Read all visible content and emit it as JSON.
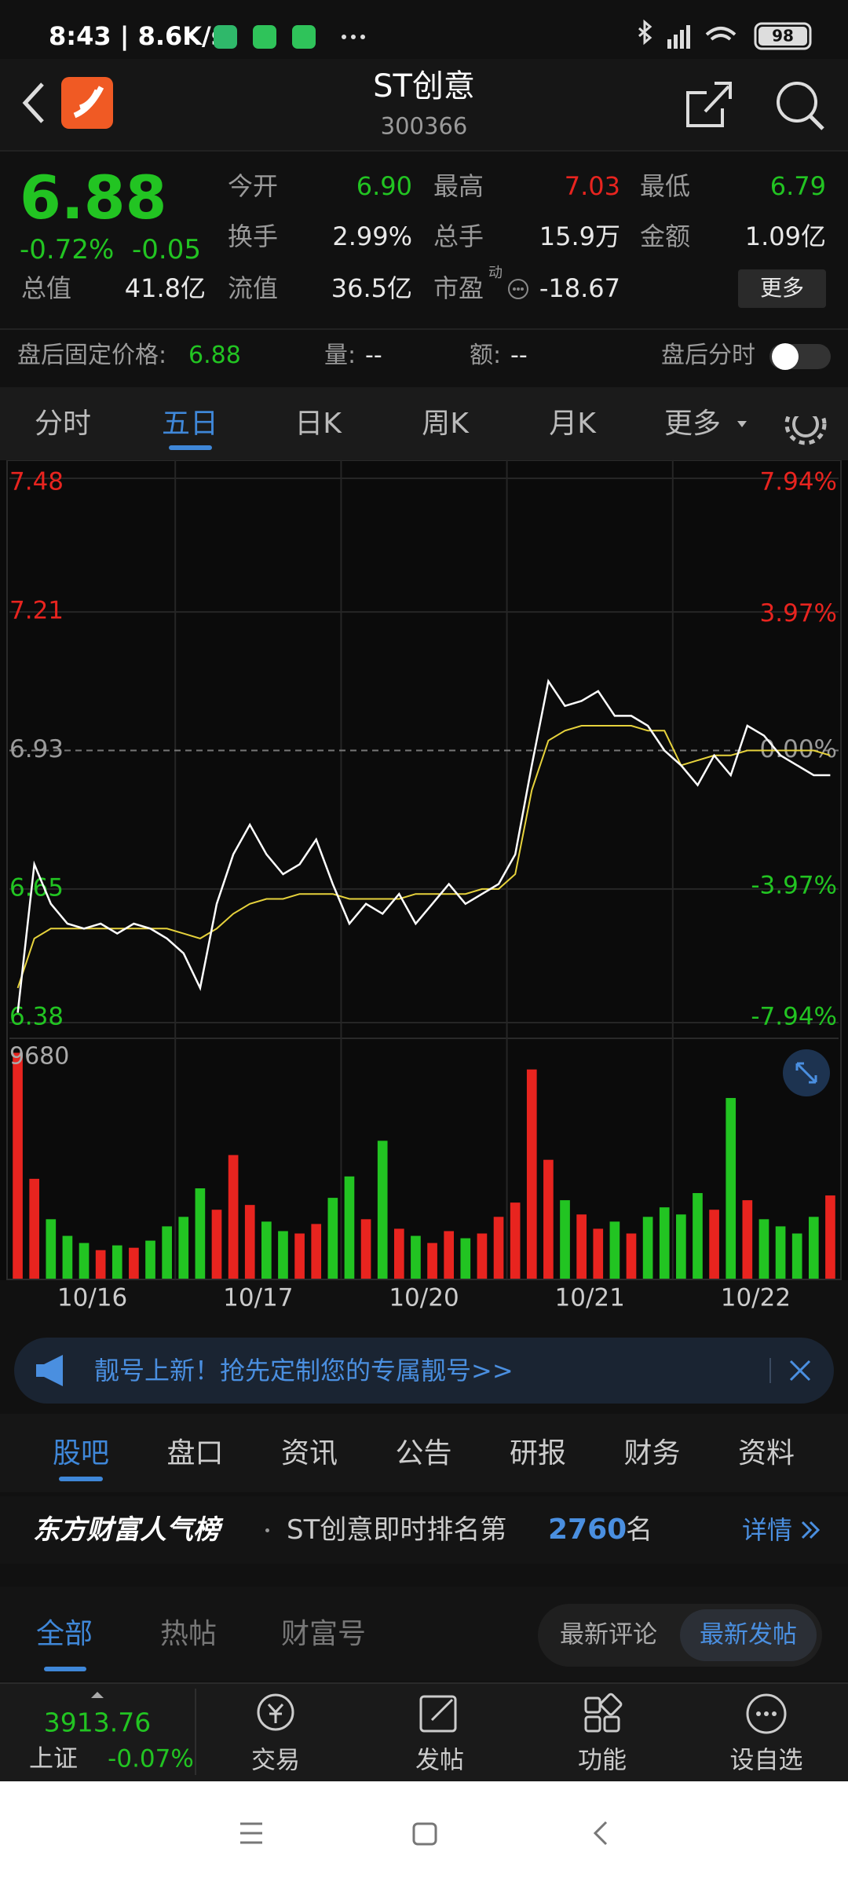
{
  "status_bar": {
    "time": "8:43 | 8.6K/s",
    "battery": "98"
  },
  "header": {
    "title": "ST创意",
    "code": "300366"
  },
  "quote": {
    "price": "6.88",
    "change_pct": "-0.72%",
    "change": "-0.05",
    "stats": [
      {
        "label": "今开",
        "value": "6.90"
      },
      {
        "label": "最高",
        "value": "7.03"
      },
      {
        "label": "最低",
        "value": "6.79"
      },
      {
        "label": "换手",
        "value": "2.99%"
      },
      {
        "label": "总手",
        "value": "15.9万"
      },
      {
        "label": "金额",
        "value": "1.09亿"
      },
      {
        "label": "总值",
        "value": "41.8亿"
      },
      {
        "label": "流值",
        "value": "36.5亿"
      },
      {
        "label": "市盈",
        "value": "-18.67"
      }
    ],
    "pe_sup": "动",
    "more_button": "更多"
  },
  "after_hours": {
    "fixed_price_label": "盘后固定价格:",
    "fixed_price": "6.88",
    "volume_label": "量:",
    "volume": "--",
    "amount_label": "额:",
    "amount": "--",
    "intraday_label": "盘后分时"
  },
  "chart_tabs": [
    "分时",
    "五日",
    "日K",
    "周K",
    "月K",
    "更多"
  ],
  "chart_data": {
    "type": "line",
    "x_labels": [
      "10/16",
      "10/17",
      "10/20",
      "10/21",
      "10/22"
    ],
    "ylim": [
      6.38,
      7.48
    ],
    "yticks": [
      7.48,
      7.21,
      6.93,
      6.65,
      6.38
    ],
    "y2lim": [
      -7.94,
      7.94
    ],
    "y2ticks": [
      {
        "value": 7.94,
        "label": "7.94%"
      },
      {
        "value": 3.97,
        "label": "3.97%"
      },
      {
        "value": 0,
        "label": "0.00%"
      },
      {
        "value": -3.97,
        "label": "-3.97%"
      },
      {
        "value": -7.94,
        "label": "-7.94%"
      }
    ],
    "series": [
      {
        "color": "#ffffff",
        "values": [
          6.4,
          6.7,
          6.62,
          6.58,
          6.57,
          6.58,
          6.56,
          6.58,
          6.57,
          6.55,
          6.52,
          6.45,
          6.62,
          6.72,
          6.78,
          6.72,
          6.68,
          6.7,
          6.75,
          6.66,
          6.58,
          6.62,
          6.6,
          6.64,
          6.58,
          6.62,
          6.66,
          6.62,
          6.64,
          6.66,
          6.72,
          6.9,
          7.07,
          7.02,
          7.03,
          7.05,
          7.0,
          7.0,
          6.98,
          6.93,
          6.9,
          6.86,
          6.92,
          6.88,
          6.98,
          6.96,
          6.92,
          6.9,
          6.88,
          6.88
        ]
      },
      {
        "color": "#e6d23c",
        "values": [
          6.45,
          6.55,
          6.57,
          6.57,
          6.57,
          6.57,
          6.57,
          6.57,
          6.57,
          6.57,
          6.56,
          6.55,
          6.57,
          6.6,
          6.62,
          6.63,
          6.63,
          6.64,
          6.64,
          6.64,
          6.63,
          6.63,
          6.63,
          6.63,
          6.64,
          6.64,
          6.64,
          6.64,
          6.65,
          6.65,
          6.68,
          6.85,
          6.95,
          6.97,
          6.98,
          6.98,
          6.98,
          6.98,
          6.97,
          6.97,
          6.9,
          6.91,
          6.92,
          6.92,
          6.93,
          6.93,
          6.93,
          6.93,
          6.93,
          6.92
        ]
      }
    ],
    "volume": {
      "ylim": [
        0,
        9680
      ],
      "yticks": [
        9680
      ],
      "up_color": "#e8241f",
      "down_color": "#22c422",
      "values": [
        9500,
        4200,
        2500,
        1800,
        1500,
        1200,
        1400,
        1300,
        1600,
        2200,
        2600,
        3800,
        2900,
        5200,
        3100,
        2400,
        2000,
        1900,
        2300,
        3400,
        4300,
        2500,
        5800,
        2100,
        1800,
        1500,
        2000,
        1700,
        1900,
        2600,
        3200,
        8800,
        5000,
        3300,
        2700,
        2100,
        2400,
        1900,
        2600,
        3000,
        2700,
        3600,
        2900,
        7600,
        3300,
        2500,
        2200,
        1900,
        2600,
        3500
      ]
    }
  },
  "banner": "靓号上新！抢先定制您的专属靓号>>",
  "section_tabs": [
    "股吧",
    "盘口",
    "资讯",
    "公告",
    "研报",
    "财务",
    "资料"
  ],
  "ranking": {
    "brand": "东方财富人气榜",
    "text": "ST创意即时排名第",
    "rank": "2760",
    "unit": "名",
    "detail": "详情"
  },
  "post_tabs": [
    "全部",
    "热帖",
    "财富号"
  ],
  "sort_tabs": [
    "最新评论",
    "最新发帖"
  ],
  "bottom_bar": {
    "index_value": "3913.76",
    "index_name": "上证",
    "index_change": "-0.07%",
    "items": [
      "交易",
      "发帖",
      "功能",
      "设自选"
    ]
  }
}
